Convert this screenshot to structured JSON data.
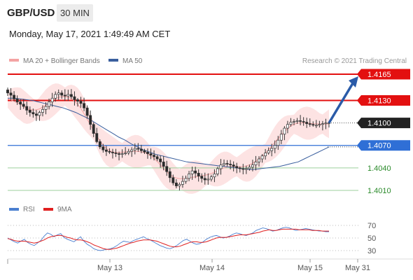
{
  "header": {
    "symbol": "GBP/USD",
    "timeframe": "30 MIN",
    "timestamp": "Monday, May 17, 2021 1:49:49 AM CET"
  },
  "legend": [
    {
      "label": "MA 20 + Bollinger Bands",
      "color": "#f4a3a3"
    },
    {
      "label": "MA 50",
      "color": "#3a5f9e"
    }
  ],
  "copyright": "Research © 2021 Trading Central",
  "colors": {
    "resistance": "#e31010",
    "current": "#222222",
    "pivot": "#2f6fd6",
    "support": "#2a8a2a",
    "support_line": "#9ccf9c",
    "arrow": "#2a5ba8",
    "bollinger_fill": "#fde3e3",
    "ma20": "#f4a3a3",
    "ma50": "#3a5f9e",
    "rsi": "#4a7fd0",
    "rsi_ma": "#e02020"
  },
  "chart_data": [
    {
      "type": "candlestick",
      "title": "GBP/USD",
      "y_range": [
        1.3977,
        1.418
      ],
      "x_tick_labels": [
        "May 13",
        "May 14",
        "May 15",
        "May 31"
      ],
      "price_levels": [
        {
          "label": "1.4165",
          "value": 1.4165,
          "kind": "resistance"
        },
        {
          "label": "1.4130",
          "value": 1.413,
          "kind": "resistance"
        },
        {
          "label": "1.4100",
          "value": 1.41,
          "kind": "current"
        },
        {
          "label": "1.4070",
          "value": 1.407,
          "kind": "pivot"
        },
        {
          "label": "1.4040",
          "value": 1.404,
          "kind": "support"
        },
        {
          "label": "1.4010",
          "value": 1.401,
          "kind": "support"
        }
      ],
      "close_approx": [
        1.414,
        1.4137,
        1.4132,
        1.4128,
        1.4125,
        1.4122,
        1.4117,
        1.4114,
        1.4112,
        1.411,
        1.4114,
        1.4118,
        1.4122,
        1.4128,
        1.4133,
        1.4138,
        1.414,
        1.4137,
        1.4136,
        1.4138,
        1.4135,
        1.4131,
        1.4129,
        1.4126,
        1.412,
        1.411,
        1.4098,
        1.4086,
        1.4075,
        1.4068,
        1.4064,
        1.4062,
        1.4061,
        1.406,
        1.4059,
        1.4058,
        1.4059,
        1.406,
        1.4062,
        1.4064,
        1.4066,
        1.4065,
        1.4063,
        1.4061,
        1.4059,
        1.4057,
        1.4055,
        1.4052,
        1.4048,
        1.4042,
        1.4035,
        1.4027,
        1.402,
        1.4016,
        1.4018,
        1.4022,
        1.4026,
        1.4032,
        1.4036,
        1.4033,
        1.4029,
        1.4026,
        1.4024,
        1.4025,
        1.4028,
        1.4032,
        1.4039,
        1.4044,
        1.4046,
        1.4045,
        1.4044,
        1.4042,
        1.404,
        1.4039,
        1.4038,
        1.4039,
        1.4041,
        1.4044,
        1.4048,
        1.4052,
        1.4056,
        1.406,
        1.4063,
        1.4066,
        1.407,
        1.4077,
        1.4085,
        1.4093,
        1.4098,
        1.4101,
        1.4102,
        1.4103,
        1.4102,
        1.4101,
        1.4099,
        1.4098,
        1.4097,
        1.4097,
        1.4098,
        1.4099,
        1.41,
        1.41
      ],
      "ma50_approx": [
        1.4133,
        1.4133,
        1.4132,
        1.4131,
        1.413,
        1.4128,
        1.4126,
        1.4124,
        1.4122,
        1.412,
        1.4117,
        1.4114,
        1.411,
        1.4106,
        1.4101,
        1.4096,
        1.4091,
        1.4086,
        1.4081,
        1.4077,
        1.4072,
        1.4068,
        1.4064,
        1.4061,
        1.4058,
        1.4056,
        1.4054,
        1.4052,
        1.405,
        1.4048,
        1.4047,
        1.4046,
        1.4045,
        1.4044,
        1.4043,
        1.4042,
        1.4041,
        1.404,
        1.4039,
        1.4038,
        1.4038,
        1.4039,
        1.404,
        1.4041,
        1.4042,
        1.4044,
        1.4046,
        1.4048,
        1.4052,
        1.4056,
        1.406,
        1.4064,
        1.4068
      ],
      "projection": {
        "from": 1.41,
        "to": 1.4165
      }
    },
    {
      "type": "line",
      "title": "RSI",
      "legend": [
        "RSI",
        "9MA"
      ],
      "y_range": [
        20,
        78
      ],
      "y_ticks": [
        70,
        50,
        30
      ],
      "rsi_approx": [
        50,
        47,
        44,
        42,
        45,
        48,
        43,
        40,
        38,
        42,
        46,
        53,
        58,
        56,
        52,
        55,
        57,
        51,
        48,
        46,
        44,
        48,
        52,
        45,
        40,
        37,
        33,
        31,
        30,
        31,
        32,
        33,
        35,
        38,
        42,
        45,
        44,
        43,
        46,
        48,
        50,
        52,
        49,
        47,
        44,
        41,
        38,
        36,
        34,
        33,
        35,
        38,
        42,
        46,
        48,
        45,
        42,
        40,
        41,
        44,
        48,
        51,
        53,
        54,
        52,
        50,
        51,
        53,
        56,
        58,
        57,
        55,
        54,
        56,
        58,
        62,
        64,
        66,
        65,
        63,
        61,
        62,
        64,
        66,
        67,
        66,
        64,
        62,
        63,
        64,
        65,
        64,
        63,
        62,
        61,
        61,
        60,
        60
      ],
      "rsi_ma_approx": [
        49,
        48,
        46,
        45,
        45,
        45,
        44,
        43,
        42,
        43,
        45,
        47,
        50,
        52,
        53,
        54,
        54,
        53,
        51,
        50,
        48,
        47,
        47,
        46,
        44,
        42,
        39,
        37,
        35,
        33,
        32,
        32,
        33,
        34,
        36,
        38,
        40,
        42,
        43,
        45,
        46,
        47,
        47,
        47,
        46,
        45,
        43,
        41,
        39,
        37,
        36,
        36,
        37,
        39,
        41,
        43,
        44,
        44,
        43,
        43,
        44,
        46,
        48,
        50,
        51,
        51,
        51,
        52,
        53,
        54,
        55,
        55,
        55,
        56,
        57,
        58,
        59,
        61,
        62,
        63,
        62,
        62,
        63,
        64,
        64,
        64,
        64,
        64,
        63,
        63,
        63,
        63,
        62,
        62,
        62,
        61,
        61,
        61
      ]
    }
  ]
}
